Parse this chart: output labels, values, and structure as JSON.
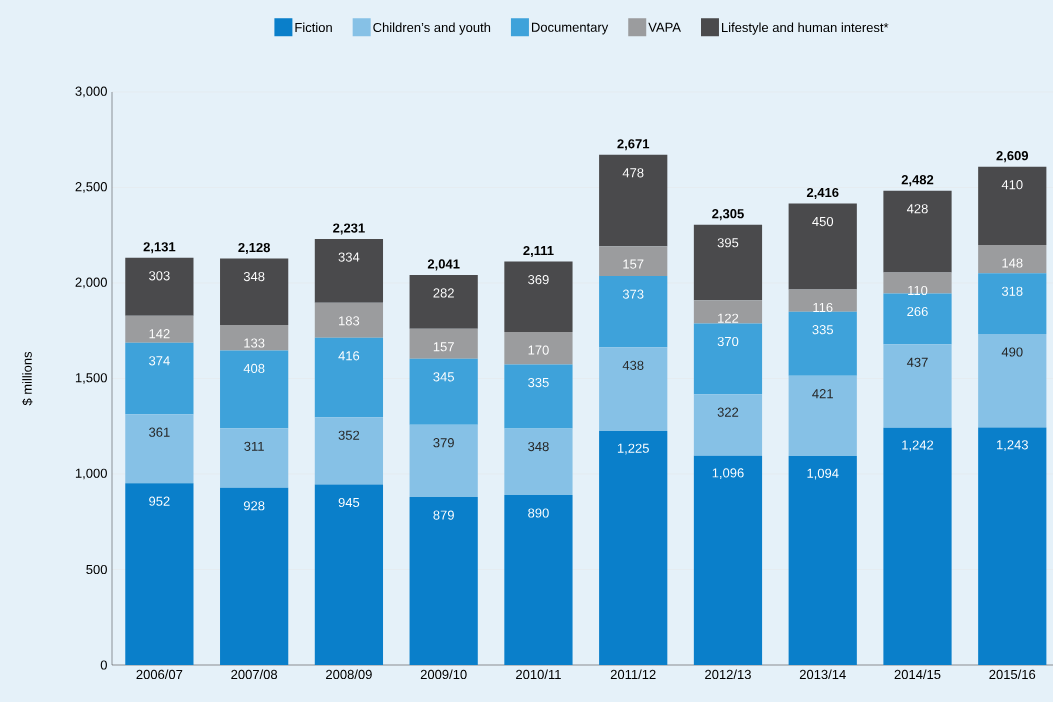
{
  "chart_data": {
    "type": "bar",
    "stacked": true,
    "ylabel": "$ millions",
    "categories": [
      "2006/07",
      "2007/08",
      "2008/09",
      "2009/10",
      "2010/11",
      "2011/12",
      "2012/13",
      "2013/14",
      "2014/15",
      "2015/16"
    ],
    "series": [
      {
        "name": "Fiction",
        "color": "#0a7fca",
        "values": [
          952,
          928,
          945,
          879,
          890,
          1225,
          1096,
          1094,
          1242,
          1243
        ],
        "value_labels": [
          "952",
          "928",
          "945",
          "879",
          "890",
          "1,225",
          "1,096",
          "1,094",
          "1,242",
          "1,243"
        ]
      },
      {
        "name": "Children’s and youth",
        "color": "#86c1e6",
        "values": [
          361,
          311,
          352,
          379,
          348,
          438,
          322,
          421,
          437,
          490
        ],
        "value_labels": [
          "361",
          "311",
          "352",
          "379",
          "348",
          "438",
          "322",
          "421",
          "437",
          "490"
        ]
      },
      {
        "name": "Documentary",
        "color": "#3ea2da",
        "values": [
          374,
          408,
          416,
          345,
          335,
          373,
          370,
          335,
          266,
          318
        ],
        "value_labels": [
          "374",
          "408",
          "416",
          "345",
          "335",
          "373",
          "370",
          "335",
          "266",
          "318"
        ]
      },
      {
        "name": "VAPA",
        "color": "#9b9c9e",
        "values": [
          142,
          133,
          183,
          157,
          170,
          157,
          122,
          116,
          110,
          148
        ],
        "value_labels": [
          "142",
          "133",
          "183",
          "157",
          "170",
          "157",
          "122",
          "116",
          "110",
          "148"
        ]
      },
      {
        "name": "Lifestyle and human interest*",
        "color": "#4a4a4c",
        "values": [
          303,
          348,
          334,
          282,
          369,
          478,
          395,
          450,
          428,
          410
        ],
        "value_labels": [
          "303",
          "348",
          "334",
          "282",
          "369",
          "478",
          "395",
          "450",
          "428",
          "410"
        ]
      }
    ],
    "totals": [
      "2,131",
      "2,128",
      "2,231",
      "2,041",
      "2,111",
      "2,671",
      "2,305",
      "2,416",
      "2,482",
      "2,609"
    ],
    "ylim": [
      0,
      3000
    ],
    "yticks": [
      0,
      {
        "value": 500,
        "label": "500"
      },
      {
        "value": 1000,
        "label": "1,000"
      },
      {
        "value": 1500,
        "label": "1,500"
      },
      {
        "value": 2000,
        "label": "2,000"
      },
      {
        "value": 2500,
        "label": "2,500"
      },
      {
        "value": 3000,
        "label": "3,000"
      }
    ],
    "grid": "y",
    "legend": "top"
  }
}
